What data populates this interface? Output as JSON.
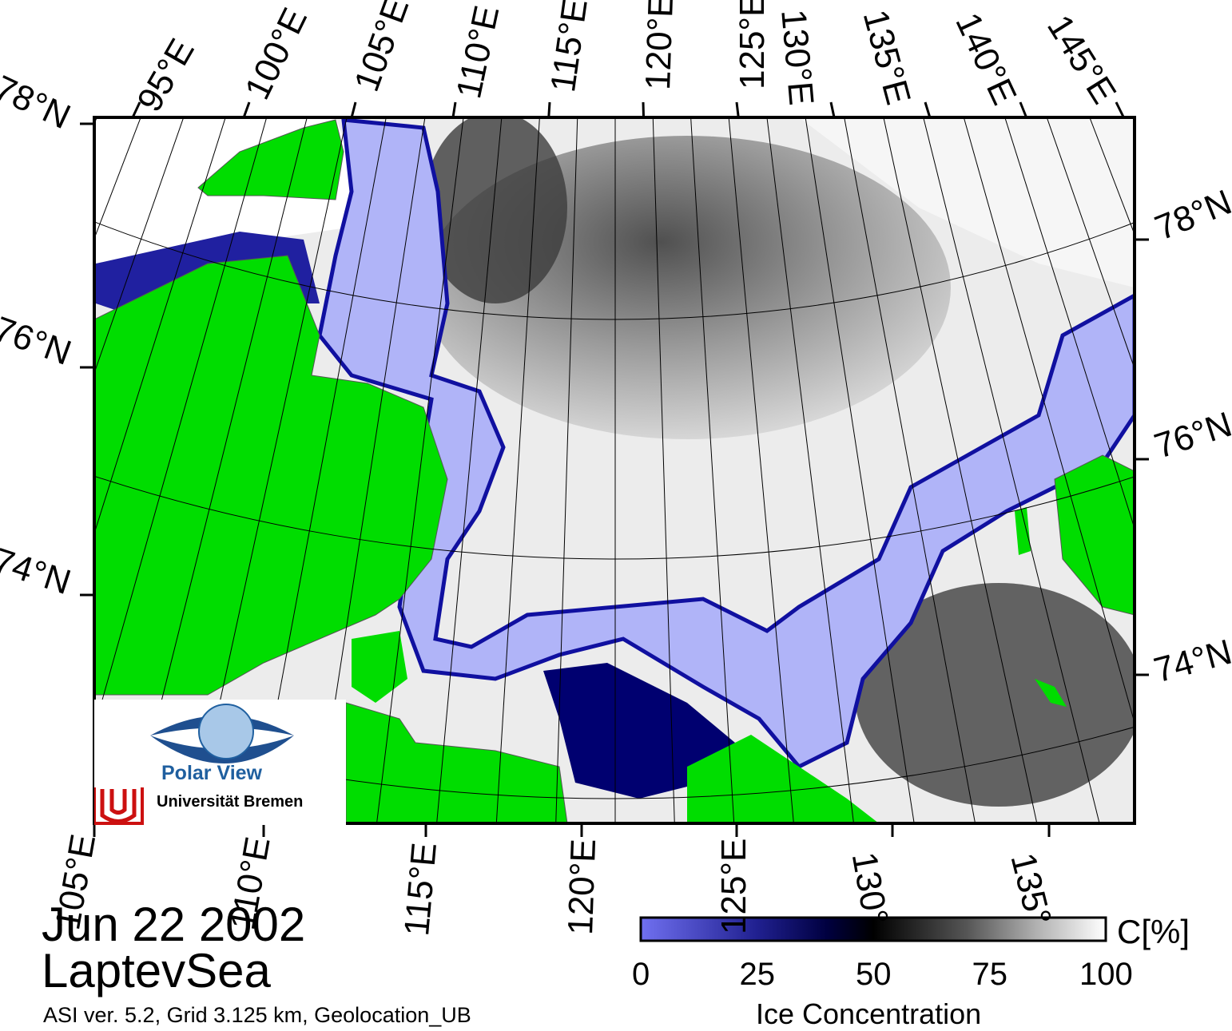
{
  "map": {
    "date": "Jun 22 2002",
    "region": "LaptevSea",
    "meta": "ASI ver. 5.2,  Grid 3.125 km, Geolocation_UB",
    "top_lon_labels": [
      "95°E",
      "100°E",
      "105°E",
      "110°E",
      "115°E",
      "120°E",
      "125°E",
      "130°E",
      "135°E",
      "140°E",
      "145°E"
    ],
    "bottom_lon_labels": [
      "105°E",
      "110°E",
      "115°E",
      "120°E",
      "125°E",
      "130°",
      "135°"
    ],
    "left_lat_labels": [
      "78°N",
      "76°N",
      "74°N"
    ],
    "right_lat_labels": [
      "78°N",
      "76°N",
      "74°N"
    ],
    "colors": {
      "land": "#00dd00",
      "low_ice_blue": "#b0b4f8",
      "dark_blue": "#000070",
      "ice_dark": "#303030",
      "ice_light": "#f4f4f4"
    }
  },
  "colorbar": {
    "title": "Ice Concentration",
    "unit": "C[%]",
    "ticks": [
      "0",
      "25",
      "50",
      "75",
      "100"
    ],
    "range": [
      0,
      100
    ]
  },
  "logo": {
    "title": "Polar View",
    "subtitle": "Universität Bremen"
  }
}
